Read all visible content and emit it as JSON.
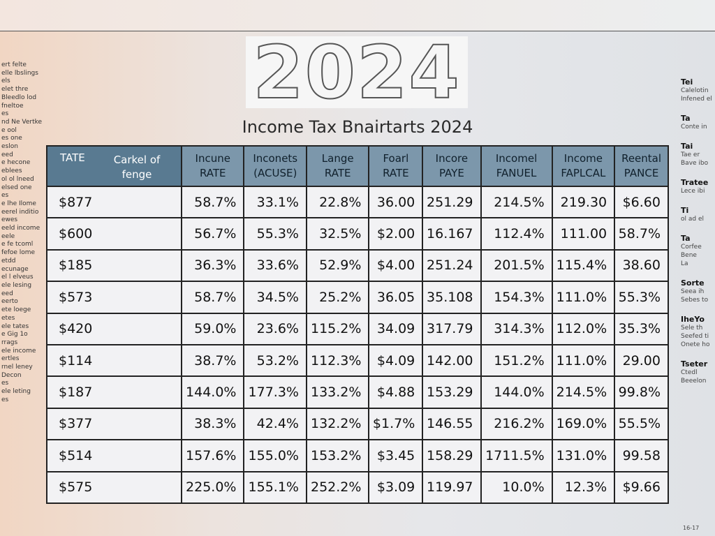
{
  "header": {
    "year": "2024",
    "title": "Income Tax Bnairtarts 2024"
  },
  "table": {
    "columns": [
      [
        "TATE",
        "Carkel of fenge"
      ],
      [
        "Incune",
        "RATE"
      ],
      [
        "Inconets",
        "(ACUSE)"
      ],
      [
        "Lange",
        "RATE"
      ],
      [
        "Foarl",
        "RATE"
      ],
      [
        "Incore",
        "PAYE"
      ],
      [
        "Incomel",
        "FANUEL"
      ],
      [
        "Income",
        "FAPLCAL"
      ],
      [
        "Reental",
        "PANCE"
      ]
    ],
    "rows": [
      [
        "$877",
        "58.7%",
        "33.1%",
        "22.8%",
        "36.00",
        "251.29",
        "214.5%",
        "219.30",
        "$6.60"
      ],
      [
        "$600",
        "56.7%",
        "55.3%",
        "32.5%",
        "$2.00",
        "16.167",
        "112.4%",
        "111.00",
        "58.7%"
      ],
      [
        "$185",
        "36.3%",
        "33.6%",
        "52.9%",
        "$4.00",
        "251.24",
        "201.5%",
        "115.4%",
        "38.60"
      ],
      [
        "$573",
        "58.7%",
        "34.5%",
        "25.2%",
        "36.05",
        "35.108",
        "154.3%",
        "111.0%",
        "55.3%"
      ],
      [
        "$420",
        "59.0%",
        "23.6%",
        "115.2%",
        "34.09",
        "317.79",
        "314.3%",
        "112.0%",
        "35.3%"
      ],
      [
        "$114",
        "38.7%",
        "53.2%",
        "112.3%",
        "$4.09",
        "142.00",
        "151.2%",
        "111.0%",
        "29.00"
      ],
      [
        "$187",
        "144.0%",
        "177.3%",
        "133.2%",
        "$4.88",
        "153.29",
        "144.0%",
        "214.5%",
        "99.8%"
      ],
      [
        "$377",
        "38.3%",
        "42.4%",
        "132.2%",
        "$1.7%",
        "146.55",
        "216.2%",
        "169.0%",
        "55.5%"
      ],
      [
        "$514",
        "157.6%",
        "155.0%",
        "153.2%",
        "$3.45",
        "158.29",
        "1711.5%",
        "131.0%",
        "99.58"
      ],
      [
        "$575",
        "225.0%",
        "155.1%",
        "252.2%",
        "$3.09",
        "119.97",
        "10.0%",
        "12.3%",
        "$9.66"
      ]
    ]
  },
  "left_notes": [
    "ert felte",
    "elle lbslings",
    "els",
    "elet thre",
    "Bleedlo lod",
    "fneltoe",
    "es",
    "nd Ne Vertke",
    "e ool",
    "es one",
    "eslon",
    "eed",
    "e hecone",
    "eblees",
    "ol ol lneed",
    "elsed one",
    "es",
    "e lhe Ilome",
    "eerel inditio",
    "ewes",
    "eeld income",
    "eele",
    "e fe tcoml",
    "fefoe lome",
    "etdd",
    "ecunage",
    "el l elveus",
    "ele lesing",
    "eed",
    "eerto",
    "ete loege",
    "etes",
    "ele tates",
    "e Gig 1o",
    "rrags",
    "ele income",
    "ertles",
    "rnel leney",
    "Decon",
    "es",
    "ele leting",
    "es"
  ],
  "right_notes": [
    "Tei",
    "Calelotin",
    "Infened el",
    "Ta",
    "Conte in",
    "Tai",
    "Tae er",
    "Bave ibo",
    "Tratee",
    "Lece ibi",
    "Ti",
    "ol ad el",
    "Ta",
    "Corfee",
    "Bene",
    "La",
    "Sorte",
    "Seea ih",
    "Sebes to",
    "IheYo",
    "Sele th",
    "Seefed ti",
    "Onete ho",
    "Tseter",
    "Ctedl",
    "Beeelon"
  ],
  "page_number": "16-17"
}
